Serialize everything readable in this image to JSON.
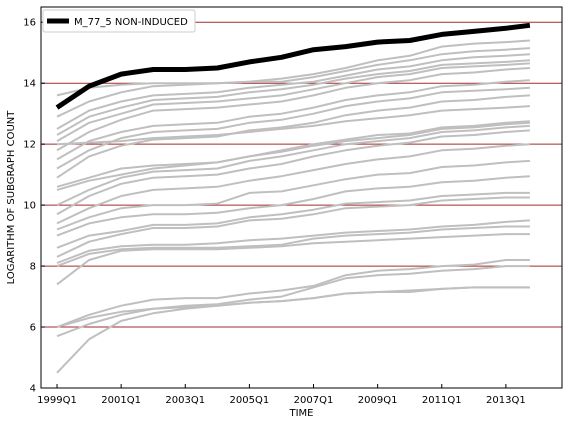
{
  "chart_data": {
    "type": "line",
    "title": "",
    "xlabel": "TIME",
    "ylabel": "LOGARITHM OF SUBGRAPH COUNT",
    "xlim": [
      1998.5,
      2014.75
    ],
    "ylim": [
      4,
      16.5
    ],
    "x_ticks": [
      1999,
      2001,
      2003,
      2005,
      2007,
      2009,
      2011,
      2013
    ],
    "x_tick_labels": [
      "1999Q1",
      "2001Q1",
      "2003Q1",
      "2005Q1",
      "2007Q1",
      "2009Q1",
      "2011Q1",
      "2013Q1"
    ],
    "y_ticks": [
      4,
      6,
      8,
      10,
      12,
      14,
      16
    ],
    "y_tick_labels": [
      "4",
      "6",
      "8",
      "10",
      "12",
      "14",
      "16"
    ],
    "grid": "horizontal",
    "grid_color": "#a52a2a",
    "legend_position": "top-left",
    "highlight": {
      "name": "M_77_5 NON-INDUCED",
      "color": "#000000",
      "x": [
        1999,
        2000,
        2001,
        2002,
        2003,
        2004,
        2005,
        2006,
        2007,
        2008,
        2009,
        2010,
        2011,
        2012,
        2013,
        2013.75
      ],
      "y": [
        13.2,
        13.9,
        14.3,
        14.45,
        14.45,
        14.5,
        14.7,
        14.85,
        15.1,
        15.2,
        15.35,
        15.4,
        15.6,
        15.7,
        15.8,
        15.9
      ]
    },
    "background_series_color": "#bfbfbf",
    "background_series": [
      {
        "x": [
          1999,
          2000,
          2001,
          2002,
          2003,
          2004,
          2005,
          2006,
          2007,
          2008,
          2009,
          2010,
          2011,
          2012,
          2013,
          2013.75
        ],
        "y": [
          13.6,
          13.85,
          13.95,
          14.0,
          14.0,
          14.0,
          14.05,
          14.15,
          14.3,
          14.5,
          14.75,
          14.9,
          15.2,
          15.3,
          15.35,
          15.4
        ]
      },
      {
        "x": [
          1999,
          2000,
          2001,
          2002,
          2003,
          2004,
          2005,
          2006,
          2007,
          2008,
          2009,
          2010,
          2011,
          2012,
          2013,
          2013.75
        ],
        "y": [
          12.9,
          13.4,
          13.7,
          13.9,
          13.95,
          14.0,
          14.05,
          14.05,
          14.2,
          14.4,
          14.6,
          14.75,
          14.95,
          15.05,
          15.1,
          15.15
        ]
      },
      {
        "x": [
          1999,
          2000,
          2001,
          2002,
          2003,
          2004,
          2005,
          2006,
          2007,
          2008,
          2009,
          2010,
          2011,
          2012,
          2013,
          2013.75
        ],
        "y": [
          12.5,
          13.1,
          13.4,
          13.6,
          13.65,
          13.7,
          13.85,
          13.95,
          14.05,
          14.25,
          14.45,
          14.55,
          14.75,
          14.85,
          14.9,
          14.95
        ]
      },
      {
        "x": [
          1999,
          2000,
          2001,
          2002,
          2003,
          2004,
          2005,
          2006,
          2007,
          2008,
          2009,
          2010,
          2011,
          2012,
          2013,
          2013.75
        ],
        "y": [
          12.3,
          12.9,
          13.2,
          13.45,
          13.5,
          13.55,
          13.7,
          13.8,
          13.95,
          14.15,
          14.3,
          14.4,
          14.6,
          14.65,
          14.7,
          14.75
        ]
      },
      {
        "x": [
          1999,
          2000,
          2001,
          2002,
          2003,
          2004,
          2005,
          2006,
          2007,
          2008,
          2009,
          2010,
          2011,
          2012,
          2013,
          2013.75
        ],
        "y": [
          12.1,
          12.7,
          13.0,
          13.3,
          13.35,
          13.4,
          13.5,
          13.6,
          13.8,
          14.0,
          14.2,
          14.3,
          14.5,
          14.55,
          14.6,
          14.65
        ]
      },
      {
        "x": [
          1999,
          2000,
          2001,
          2002,
          2003,
          2004,
          2005,
          2006,
          2007,
          2008,
          2009,
          2010,
          2011,
          2012,
          2013,
          2013.75
        ],
        "y": [
          11.8,
          12.4,
          12.8,
          13.1,
          13.15,
          13.2,
          13.3,
          13.4,
          13.6,
          13.85,
          14.0,
          14.1,
          14.3,
          14.35,
          14.45,
          14.5
        ]
      },
      {
        "x": [
          1999,
          2000,
          2001,
          2002,
          2003,
          2004,
          2005,
          2006,
          2007,
          2008,
          2009,
          2010,
          2011,
          2012,
          2013,
          2013.75
        ],
        "y": [
          11.5,
          12.1,
          12.4,
          12.6,
          12.65,
          12.7,
          12.9,
          13.0,
          13.2,
          13.45,
          13.6,
          13.7,
          13.9,
          13.95,
          14.05,
          14.1
        ]
      },
      {
        "x": [
          1999,
          2000,
          2001,
          2002,
          2003,
          2004,
          2005,
          2006,
          2007,
          2008,
          2009,
          2010,
          2011,
          2012,
          2013,
          2013.75
        ],
        "y": [
          11.2,
          11.8,
          12.2,
          12.4,
          12.45,
          12.5,
          12.7,
          12.8,
          13.0,
          13.25,
          13.4,
          13.5,
          13.7,
          13.75,
          13.8,
          13.85
        ]
      },
      {
        "x": [
          1999,
          2000,
          2001,
          2002,
          2003,
          2004,
          2005,
          2006,
          2007,
          2008,
          2009,
          2010,
          2011,
          2012,
          2013,
          2013.75
        ],
        "y": [
          10.9,
          11.6,
          11.95,
          12.15,
          12.2,
          12.25,
          12.45,
          12.55,
          12.7,
          12.95,
          13.1,
          13.2,
          13.4,
          13.45,
          13.55,
          13.6
        ]
      },
      {
        "x": [
          1999,
          2000,
          2001,
          2002,
          2003,
          2004,
          2005,
          2006,
          2007,
          2008,
          2009,
          2010,
          2011,
          2012,
          2013,
          2013.75
        ],
        "y": [
          12.0,
          12.05,
          12.1,
          12.2,
          12.25,
          12.3,
          12.4,
          12.5,
          12.6,
          12.75,
          12.85,
          12.95,
          13.1,
          13.15,
          13.2,
          13.25
        ]
      },
      {
        "x": [
          1999,
          2000,
          2001,
          2002,
          2003,
          2004,
          2005,
          2006,
          2007,
          2008,
          2009,
          2010,
          2011,
          2012,
          2013,
          2013.75
        ],
        "y": [
          10.5,
          10.8,
          11.0,
          11.2,
          11.3,
          11.4,
          11.6,
          11.75,
          11.95,
          12.1,
          12.2,
          12.3,
          12.5,
          12.55,
          12.65,
          12.7
        ]
      },
      {
        "x": [
          1999,
          2000,
          2001,
          2002,
          2003,
          2004,
          2005,
          2006,
          2007,
          2008,
          2009,
          2010,
          2011,
          2012,
          2013,
          2013.75
        ],
        "y": [
          10.6,
          10.9,
          11.2,
          11.3,
          11.35,
          11.4,
          11.6,
          11.8,
          12.0,
          12.15,
          12.3,
          12.35,
          12.55,
          12.6,
          12.7,
          12.75
        ]
      },
      {
        "x": [
          1999,
          2000,
          2001,
          2002,
          2003,
          2004,
          2005,
          2006,
          2007,
          2008,
          2009,
          2010,
          2011,
          2012,
          2013,
          2013.75
        ],
        "y": [
          10.0,
          10.5,
          10.9,
          11.1,
          11.15,
          11.2,
          11.45,
          11.6,
          11.8,
          12.0,
          12.1,
          12.2,
          12.4,
          12.45,
          12.55,
          12.6
        ]
      },
      {
        "x": [
          1999,
          2000,
          2001,
          2002,
          2003,
          2004,
          2005,
          2006,
          2007,
          2008,
          2009,
          2010,
          2011,
          2012,
          2013,
          2013.75
        ],
        "y": [
          9.7,
          10.3,
          10.7,
          10.9,
          10.95,
          11.0,
          11.2,
          11.35,
          11.6,
          11.8,
          11.95,
          12.05,
          12.25,
          12.3,
          12.4,
          12.45
        ]
      },
      {
        "x": [
          1999,
          2000,
          2001,
          2002,
          2003,
          2004,
          2005,
          2006,
          2007,
          2008,
          2009,
          2010,
          2011,
          2012,
          2013,
          2013.75
        ],
        "y": [
          9.4,
          9.9,
          10.3,
          10.5,
          10.55,
          10.6,
          10.8,
          10.95,
          11.15,
          11.35,
          11.5,
          11.6,
          11.8,
          11.85,
          11.95,
          12.0
        ]
      },
      {
        "x": [
          1999,
          2000,
          2001,
          2002,
          2003,
          2004,
          2005,
          2006,
          2007,
          2008,
          2009,
          2010,
          2011,
          2012,
          2013,
          2013.75
        ],
        "y": [
          9.2,
          9.6,
          9.9,
          10.0,
          10.0,
          10.05,
          10.4,
          10.45,
          10.65,
          10.85,
          11.0,
          11.05,
          11.25,
          11.3,
          11.4,
          11.45
        ]
      },
      {
        "x": [
          1999,
          2000,
          2001,
          2002,
          2003,
          2004,
          2005,
          2006,
          2007,
          2008,
          2009,
          2010,
          2011,
          2012,
          2013,
          2013.75
        ],
        "y": [
          9.0,
          9.4,
          9.6,
          9.7,
          9.7,
          9.75,
          9.9,
          10.0,
          10.2,
          10.45,
          10.55,
          10.6,
          10.75,
          10.8,
          10.9,
          10.95
        ]
      },
      {
        "x": [
          1999,
          2000,
          2001,
          2002,
          2003,
          2004,
          2005,
          2006,
          2007,
          2008,
          2009,
          2010,
          2011,
          2012,
          2013,
          2013.75
        ],
        "y": [
          8.6,
          9.0,
          9.15,
          9.35,
          9.35,
          9.4,
          9.6,
          9.7,
          9.85,
          10.05,
          10.1,
          10.15,
          10.3,
          10.35,
          10.4,
          10.4
        ]
      },
      {
        "x": [
          1999,
          2000,
          2001,
          2002,
          2003,
          2004,
          2005,
          2006,
          2007,
          2008,
          2009,
          2010,
          2011,
          2012,
          2013,
          2013.75
        ],
        "y": [
          8.3,
          8.8,
          9.05,
          9.25,
          9.25,
          9.3,
          9.5,
          9.55,
          9.7,
          9.9,
          9.95,
          10.0,
          10.15,
          10.2,
          10.25,
          10.25
        ]
      },
      {
        "x": [
          1999,
          2000,
          2001,
          2002,
          2003,
          2004,
          2005,
          2006,
          2007,
          2008,
          2009,
          2010,
          2011,
          2012,
          2013,
          2013.75
        ],
        "y": [
          8.1,
          8.5,
          8.65,
          8.7,
          8.7,
          8.75,
          8.85,
          8.9,
          9.0,
          9.1,
          9.15,
          9.2,
          9.3,
          9.35,
          9.45,
          9.5
        ]
      },
      {
        "x": [
          1999,
          2000,
          2001,
          2002,
          2003,
          2004,
          2005,
          2006,
          2007,
          2008,
          2009,
          2010,
          2011,
          2012,
          2013,
          2013.75
        ],
        "y": [
          8.0,
          8.4,
          8.55,
          8.6,
          8.6,
          8.6,
          8.65,
          8.7,
          8.9,
          9.0,
          9.05,
          9.1,
          9.2,
          9.25,
          9.3,
          9.3
        ]
      },
      {
        "x": [
          1999,
          2000,
          2001,
          2002,
          2003,
          2004,
          2005,
          2006,
          2007,
          2008,
          2009,
          2010,
          2011,
          2012,
          2013,
          2013.75
        ],
        "y": [
          7.4,
          8.2,
          8.5,
          8.55,
          8.55,
          8.55,
          8.6,
          8.65,
          8.75,
          8.8,
          8.85,
          8.9,
          8.95,
          9.0,
          9.05,
          9.05
        ]
      },
      {
        "x": [
          1999,
          2000,
          2001,
          2002,
          2003,
          2004,
          2005,
          2006,
          2007,
          2008,
          2009,
          2010,
          2011,
          2012,
          2013,
          2013.75
        ],
        "y": [
          6.0,
          6.4,
          6.7,
          6.9,
          6.95,
          6.95,
          7.1,
          7.2,
          7.35,
          7.7,
          7.85,
          7.9,
          8.0,
          8.05,
          8.2,
          8.2
        ]
      },
      {
        "x": [
          1999,
          2000,
          2001,
          2002,
          2003,
          2004,
          2005,
          2006,
          2007,
          2008,
          2009,
          2010,
          2011,
          2012,
          2013,
          2013.75
        ],
        "y": [
          6.0,
          6.3,
          6.5,
          6.6,
          6.7,
          6.75,
          6.9,
          7.0,
          7.3,
          7.6,
          7.7,
          7.75,
          7.85,
          7.9,
          8.0,
          8.0
        ]
      },
      {
        "x": [
          1999,
          2000,
          2001,
          2002,
          2003,
          2004,
          2005,
          2006,
          2007,
          2008,
          2009,
          2010,
          2011,
          2012,
          2013,
          2013.75
        ],
        "y": [
          5.7,
          6.1,
          6.4,
          6.6,
          6.65,
          6.7,
          6.8,
          6.85,
          6.95,
          7.1,
          7.15,
          7.2,
          7.25,
          7.3,
          7.3,
          7.3
        ]
      },
      {
        "x": [
          1999,
          2000,
          2001,
          2002,
          2003,
          2004,
          2005,
          2006,
          2007,
          2008,
          2009,
          2010,
          2011,
          2012,
          2013,
          2013.75
        ],
        "y": [
          4.5,
          5.6,
          6.2,
          6.45,
          6.6,
          6.7,
          6.8,
          6.85,
          6.95,
          7.1,
          7.15,
          7.15,
          7.25,
          7.3,
          7.3,
          7.3
        ]
      }
    ]
  }
}
